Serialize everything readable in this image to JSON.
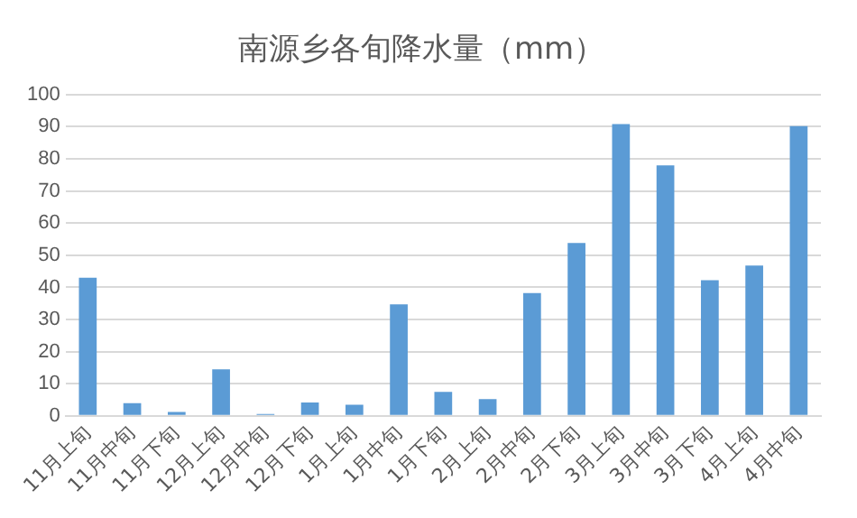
{
  "chart_data": {
    "type": "bar",
    "title": "南源乡各旬降水量（mm）",
    "categories": [
      "11月上旬",
      "11月中旬",
      "11月下旬",
      "12月上旬",
      "12月中旬",
      "12月下旬",
      "1月上旬",
      "1月中旬",
      "1月下旬",
      "2月上旬",
      "2月中旬",
      "2月下旬",
      "3月上旬",
      "3月中旬",
      "3月下旬",
      "4月上旬",
      "4月中旬"
    ],
    "values": [
      43,
      4,
      1.2,
      14.5,
      0.6,
      4.2,
      3.5,
      34.7,
      7.5,
      5.2,
      38.2,
      53.8,
      90.8,
      78,
      42.2,
      46.8,
      90.2
    ],
    "color": "#5b9bd5",
    "ylim": [
      0,
      100
    ],
    "yticks": [
      0,
      10,
      20,
      30,
      40,
      50,
      60,
      70,
      80,
      90,
      100
    ],
    "grid": "y"
  }
}
